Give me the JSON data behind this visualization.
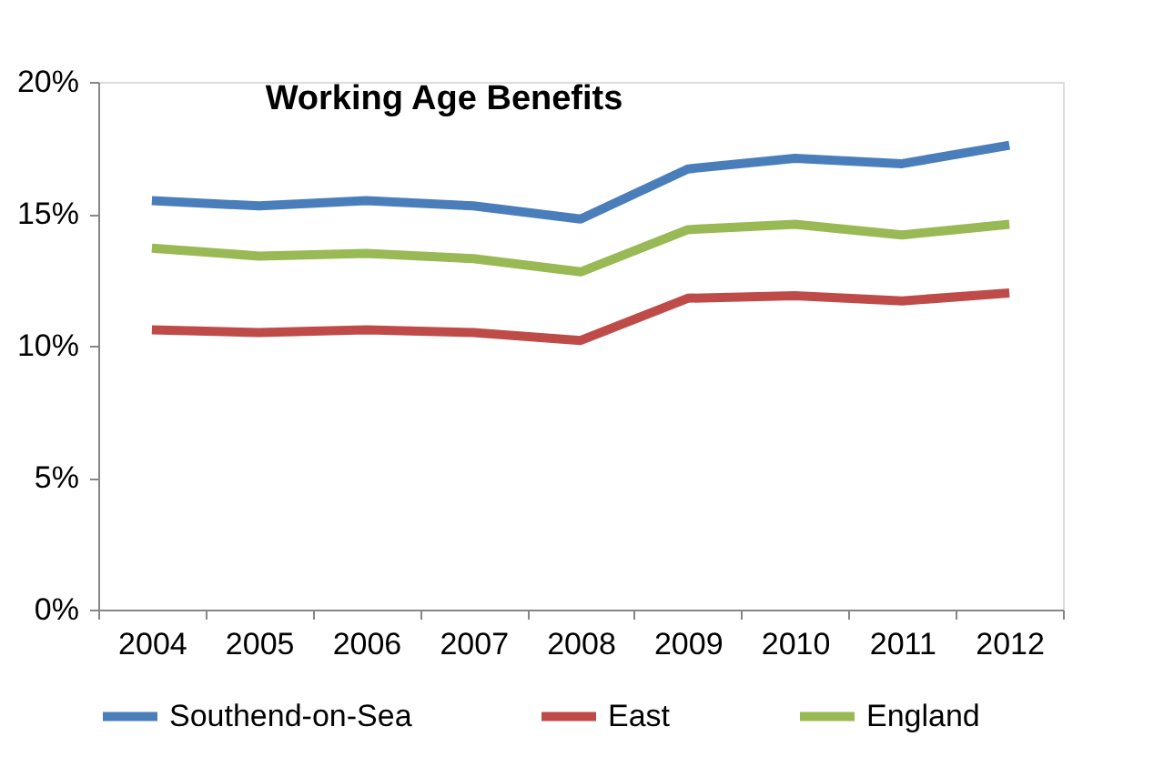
{
  "chart_data": {
    "type": "line",
    "title": "Working Age Benefits",
    "categories": [
      "2004",
      "2005",
      "2006",
      "2007",
      "2008",
      "2009",
      "2010",
      "2011",
      "2012"
    ],
    "series": [
      {
        "name": "Southend-on-Sea",
        "color": "#4a7ebb",
        "values": [
          15.5,
          15.3,
          15.5,
          15.3,
          14.8,
          16.7,
          17.1,
          16.9,
          17.6
        ]
      },
      {
        "name": "East",
        "color": "#be4b48",
        "values": [
          10.6,
          10.5,
          10.6,
          10.5,
          10.2,
          11.8,
          11.9,
          11.7,
          12.0
        ]
      },
      {
        "name": "England",
        "color": "#98b954",
        "values": [
          13.7,
          13.4,
          13.5,
          13.3,
          12.8,
          14.4,
          14.6,
          14.2,
          14.6
        ]
      }
    ],
    "ylim": [
      0,
      20
    ],
    "yticks": [
      {
        "value": 0,
        "label": "0%"
      },
      {
        "value": 5,
        "label": "5%"
      },
      {
        "value": 10,
        "label": "10%"
      },
      {
        "value": 15,
        "label": "15%"
      },
      {
        "value": 20,
        "label": "20%"
      }
    ],
    "grid": false,
    "legend": "bottom",
    "marker": "none",
    "line_style": "solid"
  }
}
